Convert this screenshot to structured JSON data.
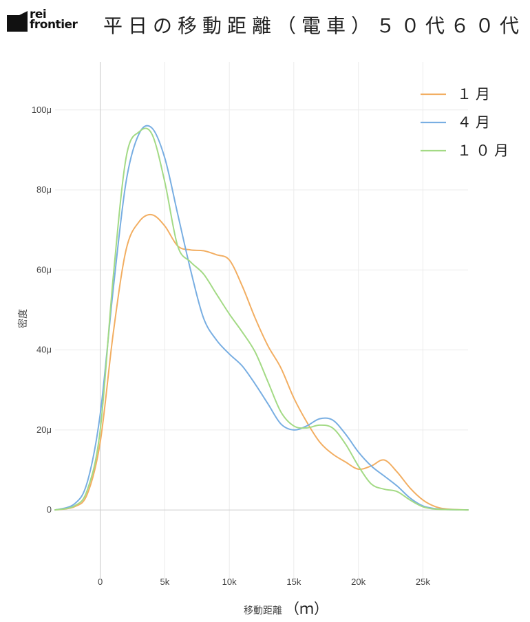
{
  "brand": {
    "logo_text_line1": "rei",
    "logo_text_line2": "frontier"
  },
  "chart_data": {
    "type": "line",
    "title": "平日の移動距離（電車）５０代６０代",
    "xlabel": "移動距離",
    "xlabel_unit": "（ｍ）",
    "ylabel": "密度",
    "xlim": [
      -3500,
      28500
    ],
    "ylim": [
      -1.7e-05,
      0.000112
    ],
    "x_ticks": [
      {
        "value": 0,
        "label": "0"
      },
      {
        "value": 5000,
        "label": "5k"
      },
      {
        "value": 10000,
        "label": "10k"
      },
      {
        "value": 15000,
        "label": "15k"
      },
      {
        "value": 20000,
        "label": "20k"
      },
      {
        "value": 25000,
        "label": "25k"
      }
    ],
    "y_ticks": [
      {
        "value": 0,
        "label": "0"
      },
      {
        "value": 2e-05,
        "label": "20μ"
      },
      {
        "value": 4e-05,
        "label": "40μ"
      },
      {
        "value": 6e-05,
        "label": "60μ"
      },
      {
        "value": 8e-05,
        "label": "80μ"
      },
      {
        "value": 0.0001,
        "label": "100μ"
      }
    ],
    "grid": true,
    "legend_position": "top-right",
    "series": [
      {
        "name": "１月",
        "color": "#F2AE62",
        "x": [
          -3500,
          -2000,
          -1000,
          0,
          1000,
          2000,
          3000,
          4000,
          5000,
          6000,
          7000,
          8000,
          9000,
          10000,
          11000,
          12000,
          13000,
          14000,
          15000,
          16000,
          17000,
          18000,
          19000,
          20000,
          21000,
          22000,
          23000,
          24000,
          25000,
          26000,
          27000,
          28500
        ],
        "y": [
          0,
          8e-07,
          4e-06,
          1.7e-05,
          4.4e-05,
          6.5e-05,
          7.2e-05,
          7.38e-05,
          7.1e-05,
          6.6e-05,
          6.5e-05,
          6.48e-05,
          6.38e-05,
          6.25e-05,
          5.6e-05,
          4.8e-05,
          4.1e-05,
          3.55e-05,
          2.8e-05,
          2.2e-05,
          1.7e-05,
          1.4e-05,
          1.2e-05,
          1.02e-05,
          1.1e-05,
          1.25e-05,
          9.5e-06,
          5.5e-06,
          2.5e-06,
          8e-07,
          2e-07,
          0
        ]
      },
      {
        "name": "４月",
        "color": "#78AEE2",
        "x": [
          -3500,
          -2000,
          -1000,
          0,
          1000,
          2000,
          3000,
          4000,
          5000,
          6000,
          7000,
          8000,
          9000,
          10000,
          11000,
          12000,
          13000,
          14000,
          15000,
          16000,
          17000,
          18000,
          19000,
          20000,
          21000,
          22000,
          23000,
          24000,
          25000,
          26000,
          27000,
          28500
        ],
        "y": [
          0,
          1.5e-06,
          7e-06,
          2.4e-05,
          5.5e-05,
          8.2e-05,
          9.4e-05,
          9.55e-05,
          8.8e-05,
          7.4e-05,
          6e-05,
          4.8e-05,
          4.25e-05,
          3.9e-05,
          3.6e-05,
          3.15e-05,
          2.65e-05,
          2.15e-05,
          2e-05,
          2.1e-05,
          2.28e-05,
          2.25e-05,
          1.9e-05,
          1.45e-05,
          1.1e-05,
          8.5e-06,
          6e-06,
          3e-06,
          1e-06,
          3e-07,
          1e-07,
          0
        ]
      },
      {
        "name": "１０月",
        "color": "#A3DA85",
        "x": [
          -3500,
          -2000,
          -1000,
          0,
          1000,
          2000,
          3000,
          4000,
          5000,
          6000,
          7000,
          8000,
          9000,
          10000,
          11000,
          12000,
          13000,
          14000,
          15000,
          16000,
          17000,
          18000,
          19000,
          20000,
          21000,
          22000,
          23000,
          24000,
          25000,
          26000,
          27000,
          28500
        ],
        "y": [
          0,
          1e-06,
          5e-06,
          2e-05,
          5.8e-05,
          8.8e-05,
          9.45e-05,
          9.4e-05,
          8.2e-05,
          6.6e-05,
          6.2e-05,
          5.9e-05,
          5.4e-05,
          4.9e-05,
          4.45e-05,
          3.95e-05,
          3.2e-05,
          2.45e-05,
          2.1e-05,
          2.05e-05,
          2.12e-05,
          2.05e-05,
          1.65e-05,
          1.1e-05,
          6.5e-06,
          5.2e-06,
          4.6e-06,
          2.5e-06,
          8e-07,
          2e-07,
          1e-07,
          0
        ]
      }
    ]
  }
}
